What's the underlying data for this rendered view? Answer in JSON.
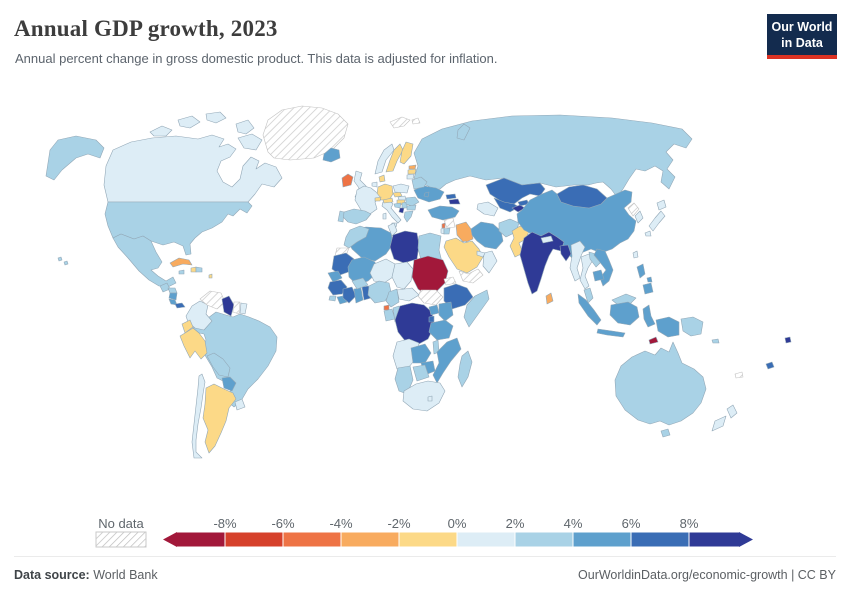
{
  "header": {
    "title": "Annual GDP growth, 2023",
    "subtitle": "Annual percent change in gross domestic product. This data is adjusted for inflation.",
    "logo": {
      "line1": "Our World",
      "line2": "in Data"
    }
  },
  "legend": {
    "no_data_label": "No data",
    "ticks": [
      "-8%",
      "-6%",
      "-4%",
      "-2%",
      "0%",
      "2%",
      "4%",
      "6%",
      "8%"
    ],
    "bins": [
      {
        "id": "lt-8",
        "color": "#a2183a"
      },
      {
        "id": "-8--6",
        "color": "#d6412b"
      },
      {
        "id": "-6--4",
        "color": "#ee7345"
      },
      {
        "id": "-4--2",
        "color": "#f8ab5f"
      },
      {
        "id": "-2-0",
        "color": "#fcd987"
      },
      {
        "id": "0-2",
        "color": "#ddedf6"
      },
      {
        "id": "2-4",
        "color": "#a9d2e6"
      },
      {
        "id": "4-6",
        "color": "#5ea0cd"
      },
      {
        "id": "6-8",
        "color": "#3a6db5"
      },
      {
        "id": "gt8",
        "color": "#2f3a96"
      }
    ]
  },
  "footer": {
    "source_label": "Data source:",
    "source_value": " World Bank",
    "license_text": "OurWorldinData.org/economic-growth | CC BY"
  },
  "chart_data": {
    "type": "choropleth",
    "title": "Annual GDP growth, 2023",
    "unit": "%",
    "bin_edges": [
      -8,
      -6,
      -4,
      -2,
      0,
      2,
      4,
      6,
      8
    ],
    "regions": {
      "Canada": "0-2",
      "United States": "2-4",
      "Mexico": "2-4",
      "Greenland": "no-data",
      "Guatemala": "2-4",
      "Honduras": "2-4",
      "Nicaragua": "4-6",
      "Costa Rica": "4-6",
      "Panama": "6-8",
      "Cuba": "-4--2",
      "Jamaica": "2-4",
      "Haiti": "-2-0",
      "Dominican Republic": "2-4",
      "Lesser Antilles": "-2-0",
      "Colombia": "0-2",
      "Venezuela": "no-data",
      "Guyana": "gt8",
      "Suriname": "no-data",
      "French Guiana": "0-2",
      "Ecuador": "-2-0",
      "Peru": "-2-0",
      "Brazil": "2-4",
      "Bolivia": "2-4",
      "Paraguay": "4-6",
      "Argentina": "-2-0",
      "Chile": "0-2",
      "Uruguay": "0-2",
      "Iceland": "4-6",
      "Ireland": "-6--4",
      "United Kingdom": "0-2",
      "Norway": "0-2",
      "Sweden": "-2-0",
      "Finland": "-2-0",
      "Estonia": "-4--2",
      "Latvia": "-2-0",
      "Lithuania": "0-2",
      "Denmark": "-2-0",
      "Germany": "-2-0",
      "Netherlands": "0-2",
      "France": "0-2",
      "Spain": "2-4",
      "Portugal": "2-4",
      "Italy": "0-2",
      "Switzerland": "-2-0",
      "Austria": "-2-0",
      "Czechia": "-2-0",
      "Slovakia": "0-2",
      "Hungary": "-2-0",
      "Poland": "0-2",
      "Croatia": "2-4",
      "Serbia": "2-4",
      "Montenegro": "gt8",
      "Romania": "2-4",
      "Bulgaria": "2-4",
      "Greece": "2-4",
      "Ukraine": "4-6",
      "Belarus": "2-4",
      "Moldova": "4-6",
      "Russia": "2-4",
      "Svalbard": "no-data",
      "Novaya Zemlya": "2-4",
      "Kazakhstan": "6-8",
      "Uzbekistan": "6-8",
      "Tajikistan": "gt8",
      "Kyrgyzstan": "6-8",
      "Turkmenistan": "0-2",
      "Georgia": "6-8",
      "Armenia": "gt8",
      "Turkey": "4-6",
      "Syria": "no-data",
      "Lebanon": "-6--4",
      "Israel": "0-2",
      "Jordan": "2-4",
      "Iraq": "-4--2",
      "Iran": "4-6",
      "Kuwait": "0-2",
      "Saudi Arabia": "-2-0",
      "Yemen": "no-data",
      "Oman": "0-2",
      "United Arab Emirates": "0-2",
      "Afghanistan": "2-4",
      "Pakistan": "-2-0",
      "India": "gt8",
      "Nepal": "0-2",
      "Bangladesh": "gt8",
      "Sri Lanka": "-4--2",
      "China": "4-6",
      "Mongolia": "6-8",
      "North Korea": "no-data",
      "South Korea": "0-2",
      "Japan": "0-2",
      "Taiwan": "0-2",
      "Myanmar": "0-2",
      "Thailand": "0-2",
      "Laos": "2-4",
      "Vietnam": "4-6",
      "Cambodia": "4-6",
      "Malaysia": "2-4",
      "Indonesia": "4-6",
      "Philippines": "4-6",
      "Timor-Leste": "lt-8",
      "Papua New Guinea": "2-4",
      "Solomon Islands": "2-4",
      "Fiji": "6-8",
      "New Caledonia": "no-data",
      "Tonga": "gt8",
      "Australia": "2-4",
      "New Zealand": "0-2",
      "Hawaii": "2-4",
      "Morocco": "2-4",
      "Western Sahara": "no-data",
      "Algeria": "4-6",
      "Tunisia": "0-2",
      "Libya": "gt8",
      "Egypt": "2-4",
      "Mauritania": "6-8",
      "Mali": "4-6",
      "Niger": "0-2",
      "Chad": "0-2",
      "Sudan": "lt-8",
      "Eritrea": "no-data",
      "Djibouti": "6-8",
      "Ethiopia": "6-8",
      "Somalia": "2-4",
      "South Sudan": "no-data",
      "Senegal": "4-6",
      "Guinea": "6-8",
      "Sierra Leone": "2-4",
      "Liberia": "4-6",
      "Cote d'Ivoire": "6-8",
      "Ghana": "4-6",
      "Togo-Benin": "6-8",
      "Burkina Faso": "2-4",
      "Nigeria": "2-4",
      "Cameroon": "2-4",
      "Central African Republic": "0-2",
      "Equatorial Guinea": "-6--4",
      "Gabon": "2-4",
      "Congo": "2-4",
      "DR Congo": "gt8",
      "Uganda": "4-6",
      "Kenya": "4-6",
      "Rwanda": "6-8",
      "Tanzania": "4-6",
      "Angola": "0-2",
      "Zambia": "4-6",
      "Malawi": "2-4",
      "Mozambique": "4-6",
      "Zimbabwe": "4-6",
      "Botswana": "2-4",
      "Namibia": "2-4",
      "South Africa": "0-2",
      "Lesotho": "0-2",
      "Madagascar": "2-4"
    }
  }
}
